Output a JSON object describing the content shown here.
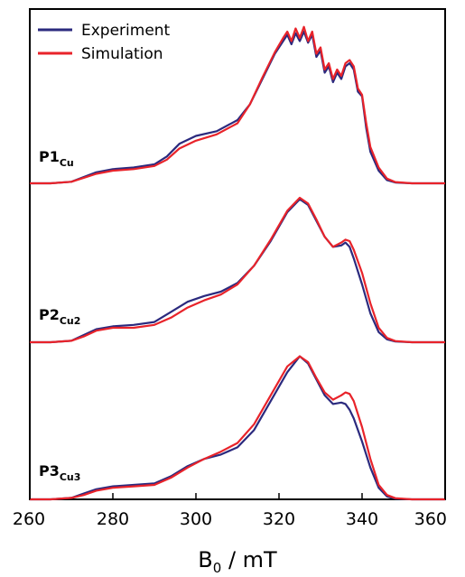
{
  "chart_data": {
    "type": "line",
    "xlabel_main": "B",
    "xlabel_sub": "0",
    "xlabel_rest": " / mT",
    "xlim": [
      260,
      360
    ],
    "xticks": [
      "260",
      "280",
      "300",
      "320",
      "340",
      "360"
    ],
    "legend_position": "top-left",
    "legend": [
      {
        "name": "Experiment",
        "color": "#2b2a7e"
      },
      {
        "name": "Simulation",
        "color": "#e8232a"
      }
    ],
    "panels": [
      {
        "label_main": "P1",
        "label_sub": "Cu",
        "series": [
          {
            "name": "Experiment",
            "x": [
              260,
              265,
              270,
              273,
              276,
              280,
              285,
              290,
              293,
              296,
              300,
              305,
              310,
              313,
              316,
              319,
              321,
              322,
              323,
              324,
              325,
              326,
              327,
              328,
              329,
              330,
              331,
              332,
              333,
              334,
              335,
              336,
              337,
              338,
              339,
              340,
              341,
              342,
              344,
              346,
              348,
              352,
              360
            ],
            "y": [
              0,
              0,
              0.01,
              0.04,
              0.07,
              0.09,
              0.1,
              0.12,
              0.17,
              0.25,
              0.3,
              0.33,
              0.4,
              0.5,
              0.66,
              0.82,
              0.9,
              0.94,
              0.88,
              0.95,
              0.9,
              0.96,
              0.89,
              0.94,
              0.8,
              0.84,
              0.7,
              0.74,
              0.64,
              0.7,
              0.66,
              0.74,
              0.76,
              0.72,
              0.58,
              0.55,
              0.35,
              0.2,
              0.08,
              0.02,
              0.005,
              0,
              0
            ]
          },
          {
            "name": "Simulation",
            "x": [
              260,
              265,
              270,
              273,
              276,
              280,
              285,
              290,
              293,
              296,
              300,
              305,
              310,
              313,
              316,
              319,
              321,
              322,
              323,
              324,
              325,
              326,
              327,
              328,
              329,
              330,
              331,
              332,
              333,
              334,
              335,
              336,
              337,
              338,
              339,
              340,
              341,
              342,
              344,
              346,
              348,
              352,
              360
            ],
            "y": [
              0,
              0,
              0.01,
              0.035,
              0.06,
              0.08,
              0.09,
              0.11,
              0.15,
              0.22,
              0.27,
              0.31,
              0.38,
              0.5,
              0.67,
              0.83,
              0.92,
              0.96,
              0.9,
              0.98,
              0.92,
              0.99,
              0.9,
              0.96,
              0.82,
              0.86,
              0.72,
              0.76,
              0.66,
              0.72,
              0.68,
              0.76,
              0.78,
              0.74,
              0.6,
              0.56,
              0.38,
              0.23,
              0.1,
              0.03,
              0.008,
              0,
              0
            ]
          }
        ]
      },
      {
        "label_main": "P2",
        "label_sub": "Cu2",
        "series": [
          {
            "name": "Experiment",
            "x": [
              260,
              265,
              270,
              273,
              276,
              280,
              285,
              290,
              294,
              298,
              302,
              306,
              310,
              314,
              318,
              322,
              325,
              327,
              329,
              331,
              333,
              335,
              336,
              337,
              338,
              340,
              342,
              344,
              346,
              348,
              352,
              360
            ],
            "y": [
              0,
              0,
              0.01,
              0.05,
              0.09,
              0.11,
              0.12,
              0.14,
              0.21,
              0.28,
              0.32,
              0.35,
              0.41,
              0.53,
              0.7,
              0.9,
              0.99,
              0.95,
              0.84,
              0.73,
              0.66,
              0.67,
              0.69,
              0.66,
              0.58,
              0.4,
              0.2,
              0.07,
              0.02,
              0.005,
              0,
              0
            ]
          },
          {
            "name": "Simulation",
            "x": [
              260,
              265,
              270,
              273,
              276,
              280,
              285,
              290,
              294,
              298,
              302,
              306,
              310,
              314,
              318,
              322,
              325,
              327,
              329,
              331,
              333,
              335,
              336,
              337,
              338,
              340,
              342,
              344,
              346,
              348,
              352,
              360
            ],
            "y": [
              0,
              0,
              0.01,
              0.04,
              0.08,
              0.1,
              0.1,
              0.12,
              0.17,
              0.24,
              0.29,
              0.33,
              0.4,
              0.53,
              0.71,
              0.91,
              1.0,
              0.96,
              0.85,
              0.73,
              0.66,
              0.69,
              0.71,
              0.7,
              0.64,
              0.48,
              0.27,
              0.1,
              0.03,
              0.008,
              0,
              0
            ]
          }
        ]
      },
      {
        "label_main": "P3",
        "label_sub": "Cu3",
        "series": [
          {
            "name": "Experiment",
            "x": [
              260,
              265,
              270,
              273,
              276,
              280,
              285,
              290,
              294,
              298,
              302,
              306,
              310,
              314,
              318,
              322,
              325,
              327,
              329,
              331,
              333,
              335,
              336,
              337,
              338,
              340,
              342,
              344,
              346,
              348,
              352,
              360
            ],
            "y": [
              0,
              0,
              0.01,
              0.04,
              0.07,
              0.09,
              0.1,
              0.11,
              0.16,
              0.23,
              0.28,
              0.31,
              0.36,
              0.48,
              0.68,
              0.88,
              0.99,
              0.94,
              0.83,
              0.72,
              0.66,
              0.67,
              0.66,
              0.62,
              0.56,
              0.4,
              0.22,
              0.08,
              0.02,
              0.005,
              0,
              0
            ]
          },
          {
            "name": "Simulation",
            "x": [
              260,
              265,
              270,
              273,
              276,
              280,
              285,
              290,
              294,
              298,
              302,
              306,
              310,
              314,
              318,
              322,
              325,
              327,
              329,
              331,
              333,
              335,
              336,
              337,
              338,
              340,
              342,
              344,
              346,
              348,
              352,
              360
            ],
            "y": [
              0,
              0,
              0.01,
              0.03,
              0.06,
              0.08,
              0.09,
              0.1,
              0.15,
              0.22,
              0.28,
              0.33,
              0.39,
              0.52,
              0.72,
              0.92,
              0.99,
              0.95,
              0.84,
              0.74,
              0.69,
              0.72,
              0.74,
              0.73,
              0.68,
              0.5,
              0.28,
              0.1,
              0.03,
              0.008,
              0,
              0
            ]
          }
        ]
      }
    ]
  }
}
